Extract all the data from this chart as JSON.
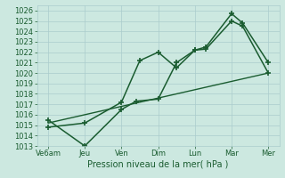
{
  "title": "",
  "xlabel": "Pression niveau de la mer( hPa )",
  "ylabel": "",
  "bg_color": "#cce8e0",
  "grid_color": "#aacccc",
  "line_color": "#1a5c30",
  "xlim": [
    -0.3,
    6.3
  ],
  "ylim": [
    1013,
    1026.5
  ],
  "xtick_labels": [
    "Ve6am",
    "Jeu",
    "Ven",
    "Dim",
    "Lun",
    "Mar",
    "Mer"
  ],
  "xtick_positions": [
    0,
    1,
    2,
    3,
    4,
    5,
    6
  ],
  "ytick_positions": [
    1013,
    1014,
    1015,
    1016,
    1017,
    1018,
    1019,
    1020,
    1021,
    1022,
    1023,
    1024,
    1025,
    1026
  ],
  "series": [
    {
      "x": [
        0,
        1,
        2,
        2.5,
        3,
        3.5,
        4,
        4.3,
        5,
        5.3,
        6
      ],
      "y": [
        1014.8,
        1015.2,
        1017.2,
        1021.2,
        1022.0,
        1020.5,
        1022.2,
        1022.5,
        1025.7,
        1024.8,
        1021.0
      ],
      "color": "#1a5c30",
      "lw": 1.1,
      "marker": "+"
    },
    {
      "x": [
        0,
        1,
        2,
        2.4,
        3,
        3.5,
        4,
        4.3,
        5,
        5.3,
        6
      ],
      "y": [
        1015.5,
        1013.0,
        1016.5,
        1017.3,
        1017.5,
        1021.0,
        1022.2,
        1022.3,
        1025.0,
        1024.5,
        1020.0
      ],
      "color": "#1a5c30",
      "lw": 1.1,
      "marker": "+"
    },
    {
      "x": [
        0,
        6
      ],
      "y": [
        1015.2,
        1020.0
      ],
      "color": "#1a5c30",
      "lw": 1.0,
      "marker": null
    }
  ]
}
